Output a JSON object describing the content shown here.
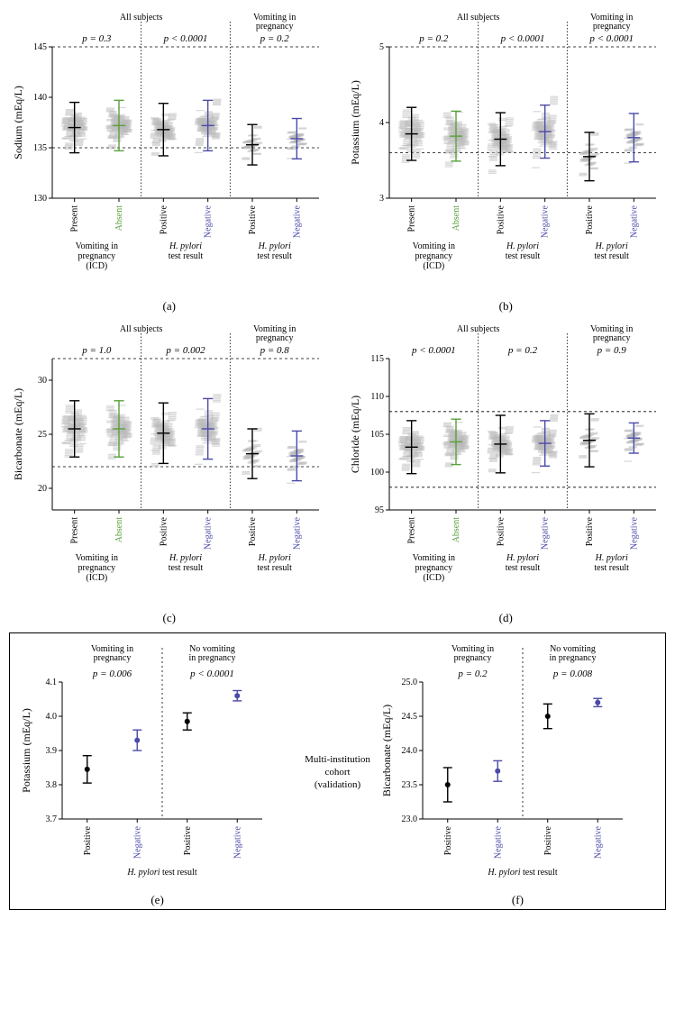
{
  "colors": {
    "black": "#000000",
    "green": "#5aa03c",
    "purple": "#4a4aa8",
    "scatter": "#b8b8b8",
    "dashed": "#000000",
    "bg": "#ffffff"
  },
  "fonts": {
    "axis_label": 12,
    "tick": 10,
    "group_header": 10,
    "pval": 11,
    "xlabel_line": 10,
    "panel_label": 13
  },
  "scatter_style": {
    "width": 9,
    "height": 1.2,
    "opacity": 0.55,
    "jitter_x": 4,
    "n_points_per_group_dense": 160,
    "n_points_per_group_sparse": 60
  },
  "errorbar_style": {
    "cap_width": 14,
    "cap_width_small": 10,
    "line_width": 1.4
  },
  "panels_top": [
    {
      "id": "a",
      "label": "(a)",
      "ylabel": "Sodium (mEq/L)",
      "ylim": [
        130,
        145
      ],
      "yticks": [
        130,
        135,
        140,
        145
      ],
      "ref_lines": [
        135,
        145
      ],
      "header_groups": [
        "All subjects",
        "Vomiting in\npregnancy"
      ],
      "header_spans": [
        [
          0,
          3
        ],
        [
          4,
          5
        ]
      ],
      "pvals": [
        "p = 0.3",
        "p < 0.0001",
        "p = 0.2"
      ],
      "pval_positions": [
        [
          0,
          1
        ],
        [
          2,
          3
        ],
        [
          4,
          5
        ]
      ],
      "dividers_after": [
        1,
        3
      ],
      "groups": [
        {
          "xlabel": "Present",
          "xsub": "Vomiting in\npregnancy\n(ICD)",
          "color": "black",
          "mean": 137.0,
          "sd": 2.5,
          "spread": 4.5,
          "density": "dense"
        },
        {
          "xlabel": "Absent",
          "xsub": "",
          "color": "green",
          "mean": 137.2,
          "sd": 2.5,
          "spread": 4.5,
          "density": "dense"
        },
        {
          "xlabel": "Positive",
          "xsub": "H. pylori\ntest result",
          "color": "black",
          "mean": 136.8,
          "sd": 2.6,
          "spread": 4.5,
          "density": "dense",
          "italic_sub": true
        },
        {
          "xlabel": "Negative",
          "xsub": "",
          "color": "purple",
          "mean": 137.2,
          "sd": 2.5,
          "spread": 4.5,
          "density": "dense"
        },
        {
          "xlabel": "Positive",
          "xsub": "H. pylori\ntest result",
          "color": "black",
          "mean": 135.3,
          "sd": 2.0,
          "spread": 3.5,
          "density": "sparse",
          "italic_sub": true
        },
        {
          "xlabel": "Negative",
          "xsub": "",
          "color": "purple",
          "mean": 135.9,
          "sd": 2.0,
          "spread": 3.5,
          "density": "sparse"
        }
      ]
    },
    {
      "id": "b",
      "label": "(b)",
      "ylabel": "Potassium (mEq/L)",
      "ylim": [
        3.0,
        5.0
      ],
      "yticks": [
        3,
        4,
        5
      ],
      "ref_lines": [
        3.6,
        5.0
      ],
      "header_groups": [
        "All subjects",
        "Vomiting in\npregnancy"
      ],
      "header_spans": [
        [
          0,
          3
        ],
        [
          4,
          5
        ]
      ],
      "pvals": [
        "p = 0.2",
        "p < 0.0001",
        "p < 0.0001"
      ],
      "pval_positions": [
        [
          0,
          1
        ],
        [
          2,
          3
        ],
        [
          4,
          5
        ]
      ],
      "dividers_after": [
        1,
        3
      ],
      "groups": [
        {
          "xlabel": "Present",
          "xsub": "Vomiting in\npregnancy\n(ICD)",
          "color": "black",
          "mean": 3.85,
          "sd": 0.35,
          "spread": 0.8,
          "density": "dense"
        },
        {
          "xlabel": "Absent",
          "xsub": "",
          "color": "green",
          "mean": 3.82,
          "sd": 0.33,
          "spread": 0.8,
          "density": "dense"
        },
        {
          "xlabel": "Positive",
          "xsub": "H. pylori\ntest result",
          "color": "black",
          "mean": 3.78,
          "sd": 0.35,
          "spread": 0.8,
          "density": "dense",
          "italic_sub": true
        },
        {
          "xlabel": "Negative",
          "xsub": "",
          "color": "purple",
          "mean": 3.88,
          "sd": 0.35,
          "spread": 0.8,
          "density": "dense"
        },
        {
          "xlabel": "Positive",
          "xsub": "H. pylori\ntest result",
          "color": "black",
          "mean": 3.55,
          "sd": 0.32,
          "spread": 0.6,
          "density": "sparse",
          "italic_sub": true
        },
        {
          "xlabel": "Negative",
          "xsub": "",
          "color": "purple",
          "mean": 3.8,
          "sd": 0.32,
          "spread": 0.6,
          "density": "sparse"
        }
      ]
    },
    {
      "id": "c",
      "label": "(c)",
      "ylabel": "Bicarbonate (mEq/L)",
      "ylim": [
        18,
        32
      ],
      "yticks": [
        20,
        25,
        30
      ],
      "ref_lines": [
        22,
        32
      ],
      "header_groups": [
        "All subjects",
        "Vomiting in\npregnancy"
      ],
      "header_spans": [
        [
          0,
          3
        ],
        [
          4,
          5
        ]
      ],
      "pvals": [
        "p = 1.0",
        "p = 0.002",
        "p = 0.8"
      ],
      "pval_positions": [
        [
          0,
          1
        ],
        [
          2,
          3
        ],
        [
          4,
          5
        ]
      ],
      "dividers_after": [
        1,
        3
      ],
      "groups": [
        {
          "xlabel": "Present",
          "xsub": "Vomiting in\npregnancy\n(ICD)",
          "color": "black",
          "mean": 25.5,
          "sd": 2.6,
          "spread": 5.5,
          "density": "dense"
        },
        {
          "xlabel": "Absent",
          "xsub": "",
          "color": "green",
          "mean": 25.5,
          "sd": 2.6,
          "spread": 5.5,
          "density": "dense"
        },
        {
          "xlabel": "Positive",
          "xsub": "H. pylori\ntest result",
          "color": "black",
          "mean": 25.1,
          "sd": 2.8,
          "spread": 5.5,
          "density": "dense",
          "italic_sub": true
        },
        {
          "xlabel": "Negative",
          "xsub": "",
          "color": "purple",
          "mean": 25.5,
          "sd": 2.8,
          "spread": 5.5,
          "density": "dense"
        },
        {
          "xlabel": "Positive",
          "xsub": "H. pylori\ntest result",
          "color": "black",
          "mean": 23.2,
          "sd": 2.3,
          "spread": 4.5,
          "density": "sparse",
          "italic_sub": true
        },
        {
          "xlabel": "Negative",
          "xsub": "",
          "color": "purple",
          "mean": 23.0,
          "sd": 2.3,
          "spread": 4.5,
          "density": "sparse"
        }
      ]
    },
    {
      "id": "d",
      "label": "(d)",
      "ylabel": "Chloride (mEq/L)",
      "ylim": [
        95,
        115
      ],
      "yticks": [
        95,
        100,
        105,
        110,
        115
      ],
      "ref_lines": [
        98,
        108
      ],
      "header_groups": [
        "All subjects",
        "Vomiting in\npregnancy"
      ],
      "header_spans": [
        [
          0,
          3
        ],
        [
          4,
          5
        ]
      ],
      "pvals": [
        "p < 0.0001",
        "p = 0.2",
        "p = 0.9"
      ],
      "pval_positions": [
        [
          0,
          1
        ],
        [
          2,
          3
        ],
        [
          4,
          5
        ]
      ],
      "dividers_after": [
        1,
        3
      ],
      "groups": [
        {
          "xlabel": "Present",
          "xsub": "Vomiting in\npregnancy\n(ICD)",
          "color": "black",
          "mean": 103.3,
          "sd": 3.5,
          "spread": 6.5,
          "density": "dense"
        },
        {
          "xlabel": "Absent",
          "xsub": "",
          "color": "green",
          "mean": 104.0,
          "sd": 3.0,
          "spread": 6.5,
          "density": "dense"
        },
        {
          "xlabel": "Positive",
          "xsub": "H. pylori\ntest result",
          "color": "black",
          "mean": 103.7,
          "sd": 3.8,
          "spread": 6.5,
          "density": "dense",
          "italic_sub": true
        },
        {
          "xlabel": "Negative",
          "xsub": "",
          "color": "purple",
          "mean": 103.8,
          "sd": 3.0,
          "spread": 6.5,
          "density": "dense"
        },
        {
          "xlabel": "Positive",
          "xsub": "H. pylori\ntest result",
          "color": "black",
          "mean": 104.2,
          "sd": 3.5,
          "spread": 5.5,
          "density": "sparse",
          "italic_sub": true
        },
        {
          "xlabel": "Negative",
          "xsub": "",
          "color": "purple",
          "mean": 104.5,
          "sd": 2.0,
          "spread": 5.5,
          "density": "sparse"
        }
      ]
    }
  ],
  "panels_bottom": [
    {
      "id": "e",
      "label": "(e)",
      "ylabel": "Potassium (mEq/L)",
      "ylim": [
        3.7,
        4.1
      ],
      "yticks": [
        3.7,
        3.8,
        3.9,
        4.0,
        4.1
      ],
      "header_groups": [
        "Vomiting in\npregnancy",
        "No vomiting\nin pregnancy"
      ],
      "header_spans": [
        [
          0,
          1
        ],
        [
          2,
          3
        ]
      ],
      "pvals": [
        "p = 0.006",
        "p < 0.0001"
      ],
      "pval_positions": [
        [
          0,
          1
        ],
        [
          2,
          3
        ]
      ],
      "dividers_after": [
        1
      ],
      "xsub_shared": "H. pylori test result",
      "groups": [
        {
          "xlabel": "Positive",
          "color": "black",
          "mean": 3.845,
          "sem": 0.04
        },
        {
          "xlabel": "Negative",
          "color": "purple",
          "mean": 3.93,
          "sem": 0.03
        },
        {
          "xlabel": "Positive",
          "color": "black",
          "mean": 3.985,
          "sem": 0.025
        },
        {
          "xlabel": "Negative",
          "color": "purple",
          "mean": 4.06,
          "sem": 0.015
        }
      ]
    },
    {
      "id": "f",
      "label": "(f)",
      "ylabel": "Bicarbonate (mEq/L)",
      "ylim": [
        23.0,
        25.0
      ],
      "yticks": [
        23.0,
        23.5,
        24.0,
        24.5,
        25.0
      ],
      "header_groups": [
        "Vomiting in\npregnancy",
        "No vomiting\nin pregnancy"
      ],
      "header_spans": [
        [
          0,
          1
        ],
        [
          2,
          3
        ]
      ],
      "pvals": [
        "p = 0.2",
        "p = 0.008"
      ],
      "pval_positions": [
        [
          0,
          1
        ],
        [
          2,
          3
        ]
      ],
      "dividers_after": [
        1
      ],
      "xsub_shared": "H. pylori test result",
      "groups": [
        {
          "xlabel": "Positive",
          "color": "black",
          "mean": 23.5,
          "sem": 0.25
        },
        {
          "xlabel": "Negative",
          "color": "purple",
          "mean": 23.7,
          "sem": 0.15
        },
        {
          "xlabel": "Positive",
          "color": "black",
          "mean": 24.5,
          "sem": 0.18
        },
        {
          "xlabel": "Negative",
          "color": "purple",
          "mean": 24.7,
          "sem": 0.06
        }
      ]
    }
  ],
  "mid_note": "Multi-institution\ncohort\n(validation)"
}
